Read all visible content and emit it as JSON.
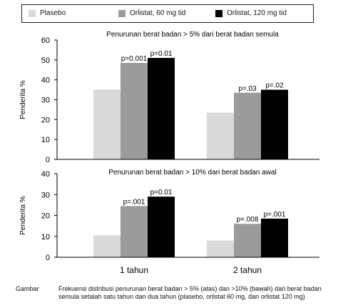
{
  "legend": [
    {
      "label": "Plasebo",
      "color": "#d9d9d9"
    },
    {
      "label": "Orlistat, 60 mg tid",
      "color": "#9b9b9b"
    },
    {
      "label": "Orlistat, 120  mg tid",
      "color": "#000000"
    }
  ],
  "chart_data": [
    {
      "type": "bar",
      "title": "Penurunan berat badan > 5% dari berat badan semula",
      "ylabel": "Penderita %",
      "ylim": [
        0,
        60
      ],
      "yticks": [
        0,
        10,
        20,
        30,
        40,
        50,
        60
      ],
      "categories": [
        "1 tahun",
        "2 tahun"
      ],
      "series": [
        {
          "name": "Plasebo",
          "values": [
            35,
            23.5
          ]
        },
        {
          "name": "Orlistat, 60 mg tid",
          "values": [
            48.5,
            33.5
          ]
        },
        {
          "name": "Orlistat, 120  mg tid",
          "values": [
            51,
            35
          ]
        }
      ],
      "annotations": [
        [
          "",
          "p=0.001",
          "p=0.01"
        ],
        [
          "",
          "p=.03",
          "p=.02"
        ]
      ]
    },
    {
      "type": "bar",
      "title": "Penurunan berat badan > 10% dari berat badan awal",
      "ylabel": "Penderita %",
      "ylim": [
        0,
        40
      ],
      "yticks": [
        0,
        10,
        20,
        30,
        40
      ],
      "categories": [
        "1 tahun",
        "2 tahun"
      ],
      "series": [
        {
          "name": "Plasebo",
          "values": [
            10.5,
            8
          ]
        },
        {
          "name": "Orlistat, 60 mg tid",
          "values": [
            24.5,
            16
          ]
        },
        {
          "name": "Orlistat, 120  mg tid",
          "values": [
            29,
            18.5
          ]
        }
      ],
      "annotations": [
        [
          "",
          "p=.001",
          "p=0.01"
        ],
        [
          "",
          "p=.008",
          "p=.001"
        ]
      ]
    }
  ],
  "caption": {
    "label": "Gambar",
    "text": "Frekuensi distribusi penurunan berat badan > 5% (atas) dan >10% (bawah) dari berat badan semula setalah satu tahun dan dua tahun (plasebo, orlistat 60 mg, dan orlistat 120 mg)"
  }
}
